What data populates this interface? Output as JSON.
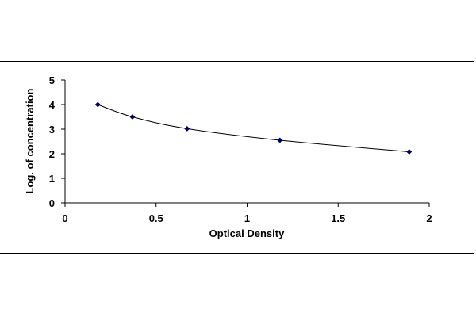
{
  "chart_data": {
    "type": "line",
    "title": "",
    "xlabel": "Optical Density",
    "ylabel": "Log. of concentration",
    "xlim": [
      0,
      2
    ],
    "ylim": [
      0,
      5
    ],
    "xticks": [
      "0",
      "0.5",
      "1",
      "1.5",
      "2"
    ],
    "yticks": [
      "0",
      "1",
      "2",
      "3",
      "4",
      "5"
    ],
    "grid": false,
    "legend": "none",
    "series": [
      {
        "x": [
          0.18,
          0.37,
          0.67,
          1.18,
          1.89
        ],
        "y": [
          4.0,
          3.5,
          3.02,
          2.55,
          2.08
        ],
        "marker": "diamond",
        "color": "#000066",
        "line_color": "#000000",
        "curve": "smooth"
      }
    ]
  }
}
